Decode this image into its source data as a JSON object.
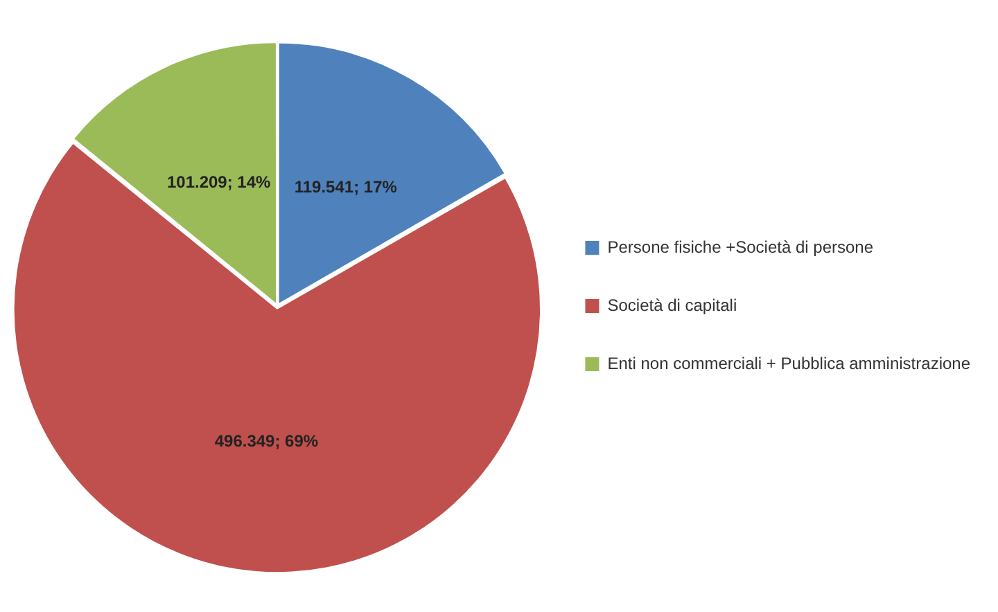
{
  "chart_data": {
    "type": "pie",
    "categories": [
      "Persone fisiche +Società di persone",
      "Società di capitali",
      "Enti non commerciali + Pubblica amministrazione"
    ],
    "values": [
      119541,
      496349,
      101209
    ],
    "value_labels": [
      "119.541; 17%",
      "496.349; 69%",
      "101.209; 14%"
    ],
    "colors": [
      "#4f81bd",
      "#c0504d",
      "#9bbb59"
    ],
    "legend": "right"
  }
}
